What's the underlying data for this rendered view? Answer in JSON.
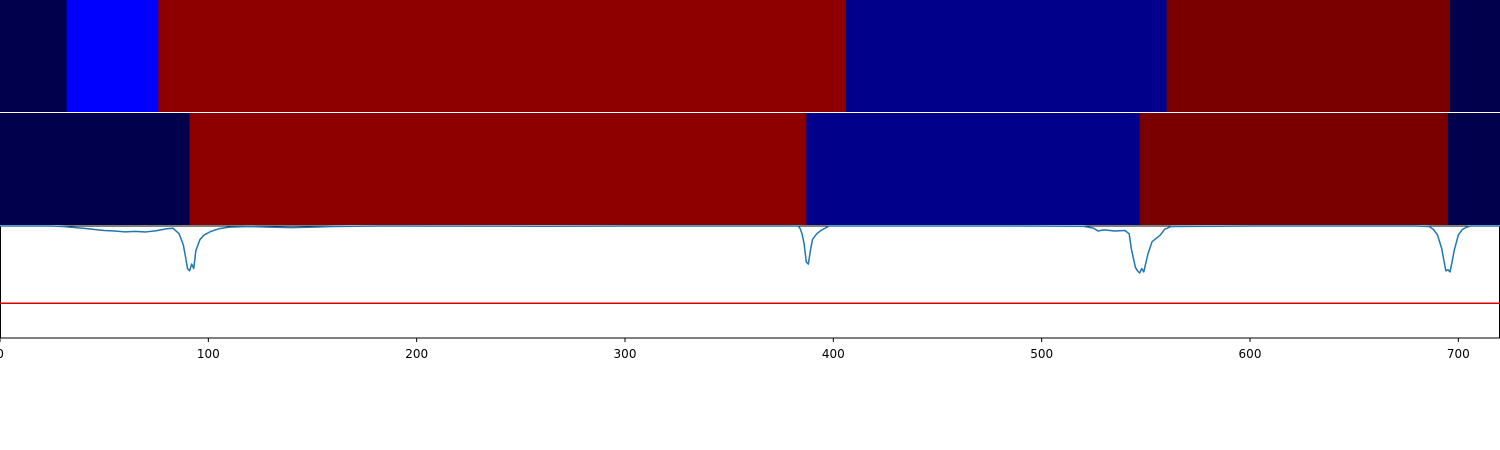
{
  "chart_data": {
    "type": "heatmap",
    "title": "",
    "xlabel": "",
    "ylabel": "",
    "xlim": [
      0,
      720
    ],
    "x_ticks": [
      0,
      100,
      200,
      300,
      400,
      500,
      600,
      700
    ],
    "segment_rows": [
      {
        "segments": [
          {
            "start": 0,
            "end": 32,
            "color": "#00004c"
          },
          {
            "start": 32,
            "end": 76,
            "color": "#0000ff"
          },
          {
            "start": 76,
            "end": 406,
            "color": "#8e0000"
          },
          {
            "start": 406,
            "end": 560,
            "color": "#00008a"
          },
          {
            "start": 560,
            "end": 696,
            "color": "#7a0000"
          },
          {
            "start": 696,
            "end": 720,
            "color": "#00004c"
          }
        ]
      },
      {
        "segments": [
          {
            "start": 0,
            "end": 91,
            "color": "#00004c"
          },
          {
            "start": 91,
            "end": 387,
            "color": "#8e0000"
          },
          {
            "start": 387,
            "end": 547,
            "color": "#00008a"
          },
          {
            "start": 547,
            "end": 695,
            "color": "#7a0000"
          },
          {
            "start": 695,
            "end": 720,
            "color": "#00004c"
          }
        ]
      }
    ],
    "signal": {
      "color": "#1f77b4",
      "ylim": [
        0,
        1
      ],
      "points": [
        [
          0,
          1.0
        ],
        [
          25,
          1.0
        ],
        [
          30,
          0.995
        ],
        [
          40,
          0.98
        ],
        [
          50,
          0.96
        ],
        [
          55,
          0.955
        ],
        [
          60,
          0.948
        ],
        [
          65,
          0.952
        ],
        [
          70,
          0.947
        ],
        [
          75,
          0.958
        ],
        [
          80,
          0.975
        ],
        [
          83,
          0.98
        ],
        [
          86,
          0.93
        ],
        [
          88,
          0.83
        ],
        [
          89,
          0.73
        ],
        [
          90,
          0.62
        ],
        [
          91,
          0.6
        ],
        [
          92,
          0.66
        ],
        [
          93,
          0.62
        ],
        [
          94,
          0.78
        ],
        [
          96,
          0.88
        ],
        [
          98,
          0.92
        ],
        [
          101,
          0.95
        ],
        [
          105,
          0.975
        ],
        [
          110,
          0.99
        ],
        [
          120,
          0.996
        ],
        [
          130,
          0.99
        ],
        [
          140,
          0.986
        ],
        [
          150,
          0.99
        ],
        [
          160,
          0.996
        ],
        [
          180,
          1.0
        ],
        [
          260,
          0.998
        ],
        [
          300,
          1.0
        ],
        [
          383,
          1.0
        ],
        [
          384,
          0.98
        ],
        [
          385,
          0.93
        ],
        [
          386,
          0.84
        ],
        [
          387,
          0.68
        ],
        [
          388,
          0.66
        ],
        [
          389,
          0.78
        ],
        [
          390,
          0.88
        ],
        [
          392,
          0.93
        ],
        [
          394,
          0.96
        ],
        [
          396,
          0.98
        ],
        [
          398,
          1.0
        ],
        [
          480,
          1.0
        ],
        [
          520,
          0.998
        ],
        [
          525,
          0.98
        ],
        [
          527,
          0.955
        ],
        [
          530,
          0.965
        ],
        [
          535,
          0.955
        ],
        [
          540,
          0.96
        ],
        [
          542,
          0.93
        ],
        [
          543,
          0.8
        ],
        [
          545,
          0.63
        ],
        [
          546,
          0.6
        ],
        [
          547,
          0.58
        ],
        [
          548,
          0.62
        ],
        [
          549,
          0.59
        ],
        [
          551,
          0.75
        ],
        [
          553,
          0.86
        ],
        [
          555,
          0.89
        ],
        [
          557,
          0.92
        ],
        [
          559,
          0.97
        ],
        [
          562,
          0.995
        ],
        [
          600,
          1.0
        ],
        [
          680,
          1.0
        ],
        [
          686,
          0.995
        ],
        [
          688,
          0.97
        ],
        [
          690,
          0.92
        ],
        [
          692,
          0.8
        ],
        [
          693,
          0.7
        ],
        [
          694,
          0.6
        ],
        [
          695,
          0.61
        ],
        [
          696,
          0.59
        ],
        [
          697,
          0.68
        ],
        [
          698,
          0.78
        ],
        [
          699,
          0.85
        ],
        [
          700,
          0.92
        ],
        [
          702,
          0.97
        ],
        [
          704,
          0.99
        ],
        [
          706,
          1.0
        ],
        [
          720,
          1.0
        ]
      ]
    },
    "threshold": {
      "value": 0.31,
      "color": "#dd0000"
    }
  }
}
